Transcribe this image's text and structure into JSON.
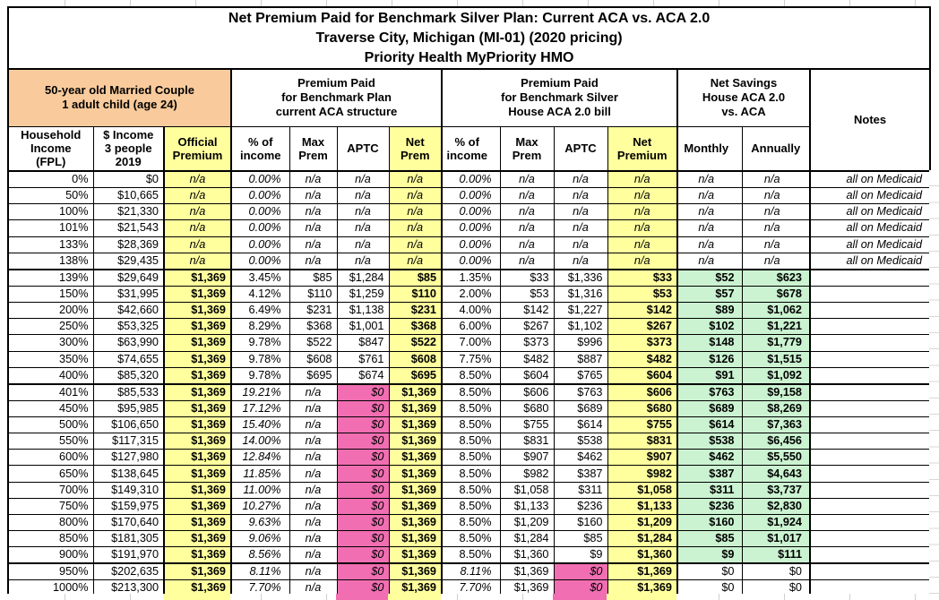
{
  "colors": {
    "yellow": "#FFFF9E",
    "orange": "#F9CB9C",
    "green": "#CBF3D1",
    "pink": "#F16EB2",
    "border": "#000000",
    "gridline": "#CFCFCF"
  },
  "title_lines": [
    "Net Premium Paid for Benchmark Silver Plan: Current ACA vs. ACA 2.0",
    "Traverse City, Michigan (MI-01) (2020 pricing)",
    "Priority Health MyPriority HMO"
  ],
  "groups": {
    "household": "50-year old Married Couple\n1 adult child (age 24)",
    "aca": "Premium Paid\nfor Benchmark Plan\ncurrent ACA structure",
    "aca2": "Premium Paid\nfor Benchmark Silver\nHouse ACA 2.0 bill",
    "savings": "Net Savings\nHouse ACA 2.0\nvs. ACA",
    "notes": "Notes"
  },
  "column_headers": [
    "Household\nIncome\n(FPL)",
    "$ Income\n3 people\n2019",
    "Official\nPremium",
    "% of\nincome",
    "Max\nPrem",
    "APTC",
    "Net\nPrem",
    "% of\nincome",
    "Max\nPrem",
    "APTC",
    "Net\nPremium",
    "Monthly",
    "Annually"
  ],
  "cell_names": [
    "cell-fpl",
    "cell-income",
    "cell-official-premium",
    "cell-aca-pct-income",
    "cell-aca-max-prem",
    "cell-aca-aptc",
    "cell-aca-net-prem",
    "cell-aca2-pct-income",
    "cell-aca2-max-prem",
    "cell-aca2-aptc",
    "cell-aca2-net-premium",
    "cell-savings-monthly",
    "cell-savings-annually",
    "cell-notes"
  ],
  "cell_styles": {
    "medicaid": [
      "",
      "",
      "iy",
      "i",
      "i",
      "i",
      "iy",
      "i",
      "i",
      "i",
      "iy",
      "i",
      "i",
      "i"
    ],
    "subsidized": [
      "",
      "",
      "by",
      "",
      "",
      "",
      "by",
      "",
      "",
      "",
      "by",
      "bg",
      "bg",
      ""
    ],
    "cliff": [
      "",
      "",
      "by",
      "i",
      "i",
      "ip",
      "by",
      "",
      "",
      "",
      "by",
      "bg",
      "bg",
      ""
    ],
    "flat": [
      "",
      "",
      "by",
      "i",
      "i",
      "ip",
      "by",
      "i",
      "",
      "ip",
      "by",
      "",
      "",
      ""
    ]
  },
  "chart_data": {
    "type": "table",
    "columns": [
      "Household Income (FPL)",
      "$ Income 3 people 2019",
      "Official Premium",
      "ACA % of income",
      "ACA Max Prem",
      "ACA APTC",
      "ACA Net Prem",
      "ACA 2.0 % of income",
      "ACA 2.0 Max Prem",
      "ACA 2.0 APTC",
      "ACA 2.0 Net Premium",
      "Net Savings Monthly",
      "Net Savings Annually",
      "Notes"
    ],
    "row_types": [
      "medicaid",
      "medicaid",
      "medicaid",
      "medicaid",
      "medicaid",
      "medicaid",
      "subsidized",
      "subsidized",
      "subsidized",
      "subsidized",
      "subsidized",
      "subsidized",
      "subsidized",
      "cliff",
      "cliff",
      "cliff",
      "cliff",
      "cliff",
      "cliff",
      "cliff",
      "cliff",
      "cliff",
      "cliff",
      "cliff",
      "flat",
      "flat"
    ],
    "rows": [
      [
        "0%",
        "$0",
        "n/a",
        "0.00%",
        "n/a",
        "n/a",
        "n/a",
        "0.00%",
        "n/a",
        "n/a",
        "n/a",
        "n/a",
        "n/a",
        "all on Medicaid"
      ],
      [
        "50%",
        "$10,665",
        "n/a",
        "0.00%",
        "n/a",
        "n/a",
        "n/a",
        "0.00%",
        "n/a",
        "n/a",
        "n/a",
        "n/a",
        "n/a",
        "all on Medicaid"
      ],
      [
        "100%",
        "$21,330",
        "n/a",
        "0.00%",
        "n/a",
        "n/a",
        "n/a",
        "0.00%",
        "n/a",
        "n/a",
        "n/a",
        "n/a",
        "n/a",
        "all on Medicaid"
      ],
      [
        "101%",
        "$21,543",
        "n/a",
        "0.00%",
        "n/a",
        "n/a",
        "n/a",
        "0.00%",
        "n/a",
        "n/a",
        "n/a",
        "n/a",
        "n/a",
        "all on Medicaid"
      ],
      [
        "133%",
        "$28,369",
        "n/a",
        "0.00%",
        "n/a",
        "n/a",
        "n/a",
        "0.00%",
        "n/a",
        "n/a",
        "n/a",
        "n/a",
        "n/a",
        "all on Medicaid"
      ],
      [
        "138%",
        "$29,435",
        "n/a",
        "0.00%",
        "n/a",
        "n/a",
        "n/a",
        "0.00%",
        "n/a",
        "n/a",
        "n/a",
        "n/a",
        "n/a",
        "all on Medicaid"
      ],
      [
        "139%",
        "$29,649",
        "$1,369",
        "3.45%",
        "$85",
        "$1,284",
        "$85",
        "1.35%",
        "$33",
        "$1,336",
        "$33",
        "$52",
        "$623",
        ""
      ],
      [
        "150%",
        "$31,995",
        "$1,369",
        "4.12%",
        "$110",
        "$1,259",
        "$110",
        "2.00%",
        "$53",
        "$1,316",
        "$53",
        "$57",
        "$678",
        ""
      ],
      [
        "200%",
        "$42,660",
        "$1,369",
        "6.49%",
        "$231",
        "$1,138",
        "$231",
        "4.00%",
        "$142",
        "$1,227",
        "$142",
        "$89",
        "$1,062",
        ""
      ],
      [
        "250%",
        "$53,325",
        "$1,369",
        "8.29%",
        "$368",
        "$1,001",
        "$368",
        "6.00%",
        "$267",
        "$1,102",
        "$267",
        "$102",
        "$1,221",
        ""
      ],
      [
        "300%",
        "$63,990",
        "$1,369",
        "9.78%",
        "$522",
        "$847",
        "$522",
        "7.00%",
        "$373",
        "$996",
        "$373",
        "$148",
        "$1,779",
        ""
      ],
      [
        "350%",
        "$74,655",
        "$1,369",
        "9.78%",
        "$608",
        "$761",
        "$608",
        "7.75%",
        "$482",
        "$887",
        "$482",
        "$126",
        "$1,515",
        ""
      ],
      [
        "400%",
        "$85,320",
        "$1,369",
        "9.78%",
        "$695",
        "$674",
        "$695",
        "8.50%",
        "$604",
        "$765",
        "$604",
        "$91",
        "$1,092",
        ""
      ],
      [
        "401%",
        "$85,533",
        "$1,369",
        "19.21%",
        "n/a",
        "$0",
        "$1,369",
        "8.50%",
        "$606",
        "$763",
        "$606",
        "$763",
        "$9,158",
        ""
      ],
      [
        "450%",
        "$95,985",
        "$1,369",
        "17.12%",
        "n/a",
        "$0",
        "$1,369",
        "8.50%",
        "$680",
        "$689",
        "$680",
        "$689",
        "$8,269",
        ""
      ],
      [
        "500%",
        "$106,650",
        "$1,369",
        "15.40%",
        "n/a",
        "$0",
        "$1,369",
        "8.50%",
        "$755",
        "$614",
        "$755",
        "$614",
        "$7,363",
        ""
      ],
      [
        "550%",
        "$117,315",
        "$1,369",
        "14.00%",
        "n/a",
        "$0",
        "$1,369",
        "8.50%",
        "$831",
        "$538",
        "$831",
        "$538",
        "$6,456",
        ""
      ],
      [
        "600%",
        "$127,980",
        "$1,369",
        "12.84%",
        "n/a",
        "$0",
        "$1,369",
        "8.50%",
        "$907",
        "$462",
        "$907",
        "$462",
        "$5,550",
        ""
      ],
      [
        "650%",
        "$138,645",
        "$1,369",
        "11.85%",
        "n/a",
        "$0",
        "$1,369",
        "8.50%",
        "$982",
        "$387",
        "$982",
        "$387",
        "$4,643",
        ""
      ],
      [
        "700%",
        "$149,310",
        "$1,369",
        "11.00%",
        "n/a",
        "$0",
        "$1,369",
        "8.50%",
        "$1,058",
        "$311",
        "$1,058",
        "$311",
        "$3,737",
        ""
      ],
      [
        "750%",
        "$159,975",
        "$1,369",
        "10.27%",
        "n/a",
        "$0",
        "$1,369",
        "8.50%",
        "$1,133",
        "$236",
        "$1,133",
        "$236",
        "$2,830",
        ""
      ],
      [
        "800%",
        "$170,640",
        "$1,369",
        "9.63%",
        "n/a",
        "$0",
        "$1,369",
        "8.50%",
        "$1,209",
        "$160",
        "$1,209",
        "$160",
        "$1,924",
        ""
      ],
      [
        "850%",
        "$181,305",
        "$1,369",
        "9.06%",
        "n/a",
        "$0",
        "$1,369",
        "8.50%",
        "$1,284",
        "$85",
        "$1,284",
        "$85",
        "$1,017",
        ""
      ],
      [
        "900%",
        "$191,970",
        "$1,369",
        "8.56%",
        "n/a",
        "$0",
        "$1,369",
        "8.50%",
        "$1,360",
        "$9",
        "$1,360",
        "$9",
        "$111",
        ""
      ],
      [
        "950%",
        "$202,635",
        "$1,369",
        "8.11%",
        "n/a",
        "$0",
        "$1,369",
        "8.11%",
        "$1,369",
        "$0",
        "$1,369",
        "$0",
        "$0",
        ""
      ],
      [
        "1000%",
        "$213,300",
        "$1,369",
        "7.70%",
        "n/a",
        "$0",
        "$1,369",
        "7.70%",
        "$1,369",
        "$0",
        "$1,369",
        "$0",
        "$0",
        ""
      ]
    ]
  }
}
